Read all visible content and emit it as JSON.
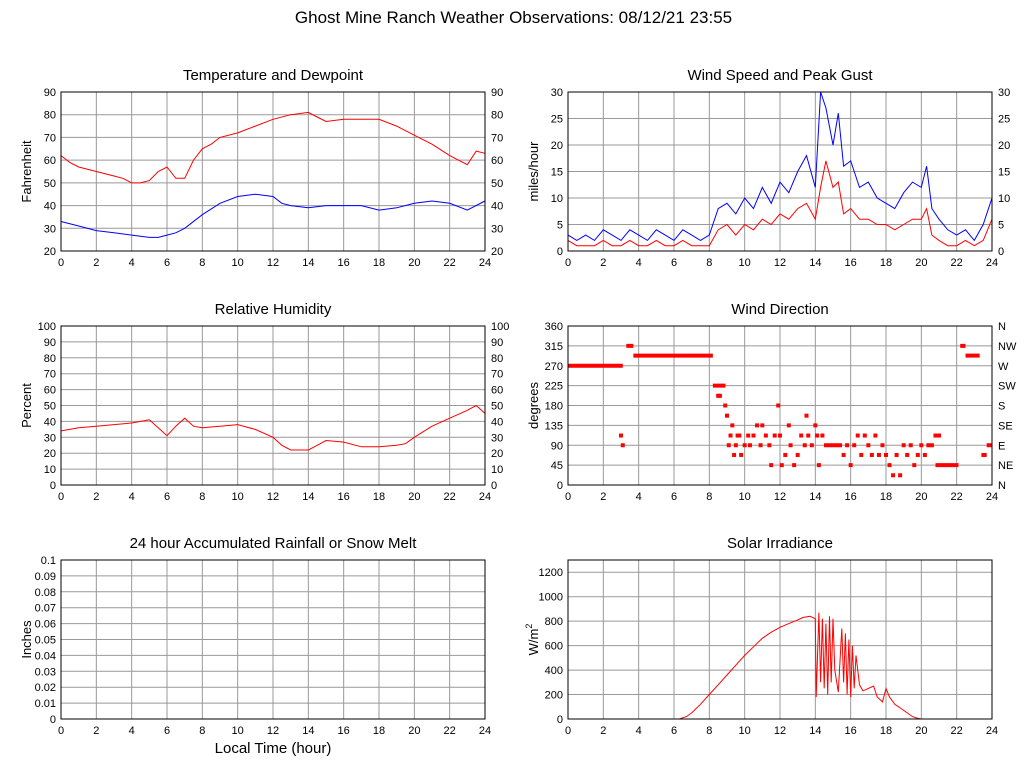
{
  "page": {
    "title": "Ghost Mine Ranch Weather Observations: 08/12/21 23:55"
  },
  "colors": {
    "red": "#ff0000",
    "blue": "#0000ff",
    "grid": "#999999",
    "frame": "#000000"
  },
  "chart_data": [
    {
      "id": "temp",
      "type": "line",
      "title": "Temperature and Dewpoint",
      "ylabel": "Fahrenheit",
      "xlim": [
        0,
        24
      ],
      "ylim": [
        20,
        90
      ],
      "xticks": [
        0,
        2,
        4,
        6,
        8,
        10,
        12,
        14,
        16,
        18,
        20,
        22,
        24
      ],
      "yticks": [
        20,
        30,
        40,
        50,
        60,
        70,
        80,
        90
      ],
      "right_ticks": [
        "20",
        "30",
        "40",
        "50",
        "60",
        "70",
        "80",
        "90"
      ],
      "grid": true,
      "series": [
        {
          "color": "#ff0000",
          "x": [
            0,
            0.5,
            1,
            2,
            3,
            3.5,
            4,
            4.5,
            5,
            5.5,
            6,
            6.5,
            7,
            7.5,
            8,
            8.5,
            9,
            10,
            11,
            12,
            13,
            14,
            14.5,
            15,
            16,
            17,
            18,
            19,
            20,
            21,
            22,
            23,
            23.5,
            24
          ],
          "y": [
            62,
            59,
            57,
            55,
            53,
            52,
            50,
            50,
            51,
            55,
            57,
            52,
            52,
            60,
            65,
            67,
            70,
            72,
            75,
            78,
            80,
            81,
            79,
            77,
            78,
            78,
            78,
            75,
            71,
            67,
            62,
            58,
            64,
            63
          ]
        },
        {
          "color": "#0000ff",
          "x": [
            0,
            1,
            2,
            3,
            4,
            5,
            5.5,
            6,
            6.5,
            7,
            8,
            9,
            10,
            11,
            12,
            12.5,
            13,
            14,
            15,
            16,
            17,
            18,
            19,
            20,
            21,
            22,
            23,
            24
          ],
          "y": [
            33,
            31,
            29,
            28,
            27,
            26,
            26,
            27,
            28,
            30,
            36,
            41,
            44,
            45,
            44,
            41,
            40,
            39,
            40,
            40,
            40,
            38,
            39,
            41,
            42,
            41,
            38,
            42
          ]
        }
      ]
    },
    {
      "id": "wind",
      "type": "line",
      "title": "Wind Speed and Peak Gust",
      "ylabel": "miles/hour",
      "xlim": [
        0,
        24
      ],
      "ylim": [
        0,
        30
      ],
      "xticks": [
        0,
        2,
        4,
        6,
        8,
        10,
        12,
        14,
        16,
        18,
        20,
        22,
        24
      ],
      "yticks": [
        0,
        5,
        10,
        15,
        20,
        25,
        30
      ],
      "right_ticks": [
        "0",
        "5",
        "10",
        "15",
        "20",
        "25",
        "30"
      ],
      "grid": true,
      "series": [
        {
          "color": "#0000ff",
          "x": [
            0,
            0.5,
            1,
            1.5,
            2,
            2.5,
            3,
            3.5,
            4,
            4.5,
            5,
            5.5,
            6,
            6.5,
            7,
            7.5,
            8,
            8.5,
            9,
            9.5,
            10,
            10.5,
            11,
            11.5,
            12,
            12.5,
            13,
            13.5,
            14,
            14.3,
            14.6,
            15,
            15.3,
            15.6,
            16,
            16.5,
            17,
            17.5,
            18,
            18.5,
            19,
            19.5,
            20,
            20.3,
            20.6,
            21,
            21.5,
            22,
            22.5,
            23,
            23.5,
            24
          ],
          "y": [
            3,
            2,
            3,
            2,
            4,
            3,
            2,
            4,
            3,
            2,
            4,
            3,
            2,
            4,
            3,
            2,
            3,
            8,
            9,
            7,
            10,
            8,
            12,
            9,
            13,
            11,
            15,
            18,
            12,
            30,
            27,
            20,
            26,
            16,
            17,
            12,
            13,
            10,
            9,
            8,
            11,
            13,
            12,
            16,
            8,
            6,
            4,
            3,
            4,
            2,
            5,
            10
          ]
        },
        {
          "color": "#ff0000",
          "x": [
            0,
            0.5,
            1,
            1.5,
            2,
            2.5,
            3,
            3.5,
            4,
            4.5,
            5,
            5.5,
            6,
            6.5,
            7,
            7.5,
            8,
            8.5,
            9,
            9.5,
            10,
            10.5,
            11,
            11.5,
            12,
            12.5,
            13,
            13.5,
            14,
            14.3,
            14.6,
            15,
            15.3,
            15.6,
            16,
            16.5,
            17,
            17.5,
            18,
            18.5,
            19,
            19.5,
            20,
            20.3,
            20.6,
            21,
            21.5,
            22,
            22.5,
            23,
            23.5,
            24
          ],
          "y": [
            2,
            1,
            1,
            1,
            2,
            1,
            1,
            2,
            1,
            1,
            2,
            1,
            1,
            2,
            1,
            1,
            1,
            4,
            5,
            3,
            5,
            4,
            6,
            5,
            7,
            6,
            8,
            9,
            6,
            12,
            17,
            12,
            13,
            7,
            8,
            6,
            6,
            5,
            5,
            4,
            5,
            6,
            6,
            8,
            3,
            2,
            1,
            1,
            2,
            1,
            2,
            6
          ]
        }
      ]
    },
    {
      "id": "rh",
      "type": "line",
      "title": "Relative Humidity",
      "ylabel": "Percent",
      "xlim": [
        0,
        24
      ],
      "ylim": [
        0,
        100
      ],
      "xticks": [
        0,
        2,
        4,
        6,
        8,
        10,
        12,
        14,
        16,
        18,
        20,
        22,
        24
      ],
      "yticks": [
        0,
        10,
        20,
        30,
        40,
        50,
        60,
        70,
        80,
        90,
        100
      ],
      "right_ticks": [
        "0",
        "10",
        "20",
        "30",
        "40",
        "50",
        "60",
        "70",
        "80",
        "90",
        "100"
      ],
      "grid": true,
      "series": [
        {
          "color": "#ff0000",
          "x": [
            0,
            1,
            2,
            3,
            4,
            4.5,
            5,
            5.5,
            6,
            6.5,
            7,
            7.5,
            8,
            9,
            10,
            11,
            12,
            12.5,
            13,
            14,
            14.5,
            15,
            16,
            17,
            18,
            19,
            19.5,
            20,
            21,
            22,
            23,
            23.5,
            24
          ],
          "y": [
            34,
            36,
            37,
            38,
            39,
            40,
            41,
            36,
            31,
            37,
            42,
            37,
            36,
            37,
            38,
            35,
            30,
            25,
            22,
            22,
            25,
            28,
            27,
            24,
            24,
            25,
            26,
            30,
            37,
            42,
            47,
            50,
            45
          ]
        }
      ]
    },
    {
      "id": "dir",
      "type": "scatter",
      "title": "Wind Direction",
      "ylabel": "degrees",
      "xlim": [
        0,
        24
      ],
      "ylim": [
        0,
        360
      ],
      "xticks": [
        0,
        2,
        4,
        6,
        8,
        10,
        12,
        14,
        16,
        18,
        20,
        22,
        24
      ],
      "yticks": [
        0,
        45,
        90,
        135,
        180,
        225,
        270,
        315,
        360
      ],
      "right_ticks": [
        "N",
        "NE",
        "E",
        "SE",
        "S",
        "SW",
        "W",
        "NW",
        "N"
      ],
      "grid": true,
      "series": [
        {
          "color": "#ff0000",
          "segments": [
            [
              0,
              3.1,
              270
            ],
            [
              3.3,
              3.7,
              315
            ],
            [
              3.7,
              8.2,
              293
            ],
            [
              8.2,
              8.7,
              225
            ],
            [
              20.8,
              22.1,
              45
            ],
            [
              22.2,
              22.5,
              315
            ],
            [
              22.5,
              23.3,
              293
            ],
            [
              23.4,
              23.7,
              68
            ],
            [
              23.7,
              24,
              90
            ]
          ],
          "x": [
            3.0,
            3.1,
            8.8,
            8.5,
            8.6,
            8.9,
            9.0,
            9.1,
            9.2,
            9.3,
            9.4,
            9.5,
            9.6,
            9.7,
            9.8,
            10.0,
            10.2,
            10.3,
            10.5,
            10.7,
            10.9,
            11.0,
            11.2,
            11.4,
            11.5,
            11.7,
            11.9,
            12.0,
            12.1,
            12.3,
            12.5,
            12.6,
            12.8,
            13.0,
            13.2,
            13.4,
            13.5,
            13.6,
            13.8,
            14.0,
            14.1,
            14.2,
            14.4,
            14.6,
            14.8,
            15.0,
            15.2,
            15.4,
            15.6,
            15.8,
            16.0,
            16.2,
            16.4,
            16.6,
            16.8,
            17.0,
            17.2,
            17.4,
            17.6,
            17.8,
            18.0,
            18.2,
            18.4,
            18.6,
            18.8,
            19.0,
            19.2,
            19.4,
            19.6,
            19.8,
            20.0,
            20.2,
            20.4,
            20.6,
            20.8,
            21.0
          ],
          "y": [
            112,
            90,
            225,
            202,
            202,
            180,
            157,
            90,
            112,
            135,
            68,
            90,
            112,
            112,
            68,
            90,
            112,
            90,
            112,
            135,
            90,
            135,
            112,
            90,
            45,
            112,
            180,
            112,
            45,
            68,
            135,
            90,
            45,
            68,
            112,
            90,
            157,
            112,
            90,
            135,
            112,
            45,
            112,
            90,
            90,
            90,
            90,
            90,
            68,
            90,
            45,
            90,
            112,
            68,
            112,
            90,
            68,
            112,
            68,
            90,
            68,
            45,
            22,
            68,
            22,
            90,
            68,
            90,
            45,
            68,
            90,
            68,
            90,
            90,
            112,
            112
          ]
        }
      ]
    },
    {
      "id": "rain",
      "type": "line",
      "title": "24 hour Accumulated Rainfall or Snow Melt",
      "ylabel": "Inches",
      "xlabel": "Local Time (hour)",
      "xlim": [
        0,
        24
      ],
      "ylim": [
        0,
        0.1
      ],
      "xticks": [
        0,
        2,
        4,
        6,
        8,
        10,
        12,
        14,
        16,
        18,
        20,
        22,
        24
      ],
      "yticks": [
        0,
        0.01,
        0.02,
        0.03,
        0.04,
        0.05,
        0.06,
        0.07,
        0.08,
        0.09,
        0.1
      ],
      "right_ticks": [],
      "grid": true,
      "series": [
        {
          "color": "#ff0000",
          "x": [
            0,
            24
          ],
          "y": [
            0,
            0
          ]
        }
      ]
    },
    {
      "id": "solar",
      "type": "line",
      "title": "Solar Irradiance",
      "ylabel": "W/m",
      "ylabel_sup": "2",
      "xlim": [
        0,
        24
      ],
      "ylim": [
        0,
        1300
      ],
      "xticks": [
        0,
        2,
        4,
        6,
        8,
        10,
        12,
        14,
        16,
        18,
        20,
        22,
        24
      ],
      "yticks": [
        0,
        200,
        400,
        600,
        800,
        1000,
        1200
      ],
      "right_ticks": [],
      "grid": true,
      "series": [
        {
          "color": "#ff0000",
          "x": [
            0,
            6.3,
            6.7,
            7,
            7.5,
            8,
            8.5,
            9,
            9.5,
            10,
            10.5,
            11,
            11.5,
            12,
            12.5,
            13,
            13.3,
            13.7,
            14,
            14.05,
            14.2,
            14.3,
            14.4,
            14.5,
            14.6,
            14.7,
            14.8,
            14.9,
            15,
            15.1,
            15.3,
            15.5,
            15.6,
            15.7,
            15.8,
            15.9,
            16,
            16.1,
            16.2,
            16.3,
            16.5,
            16.7,
            17,
            17.3,
            17.5,
            17.8,
            18,
            18.2,
            18.5,
            19,
            19.5,
            19.8,
            20,
            24
          ],
          "y": [
            0,
            0,
            20,
            50,
            120,
            200,
            280,
            360,
            440,
            520,
            590,
            660,
            710,
            750,
            780,
            810,
            830,
            840,
            820,
            180,
            870,
            300,
            820,
            250,
            780,
            200,
            840,
            300,
            820,
            400,
            220,
            740,
            300,
            700,
            200,
            650,
            180,
            600,
            250,
            520,
            280,
            230,
            250,
            270,
            180,
            140,
            250,
            180,
            120,
            70,
            20,
            5,
            0,
            0
          ]
        }
      ]
    }
  ]
}
